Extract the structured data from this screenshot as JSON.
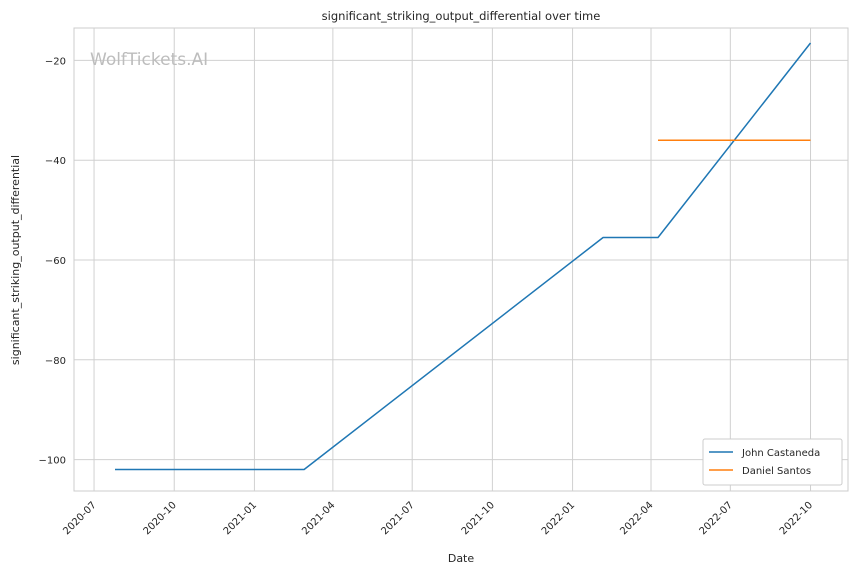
{
  "watermark": "WolfTickets.AI",
  "chart_data": {
    "type": "line",
    "title": "significant_striking_output_differential over time",
    "xlabel": "Date",
    "ylabel": "significant_striking_output_differential",
    "x_ticks": [
      "2020-07",
      "2020-10",
      "2021-01",
      "2021-04",
      "2021-07",
      "2021-10",
      "2022-01",
      "2022-04",
      "2022-07",
      "2022-10"
    ],
    "y_ticks": [
      -20,
      -40,
      -60,
      -80,
      -100
    ],
    "xlim": [
      "2020-06-08",
      "2022-11-13"
    ],
    "ylim": [
      -106.3,
      -13.5
    ],
    "grid": true,
    "legend_position": "lower-right",
    "series": [
      {
        "name": "John Castaneda",
        "color": "#1f77b4",
        "points": [
          {
            "x": "2020-07-25",
            "y": -102.0
          },
          {
            "x": "2021-02-27",
            "y": -102.0
          },
          {
            "x": "2022-02-05",
            "y": -55.5
          },
          {
            "x": "2022-04-09",
            "y": -55.5
          },
          {
            "x": "2022-10-01",
            "y": -16.5
          }
        ]
      },
      {
        "name": "Daniel Santos",
        "color": "#ff7f0e",
        "points": [
          {
            "x": "2022-04-09",
            "y": -36.0
          },
          {
            "x": "2022-10-01",
            "y": -36.0
          }
        ]
      }
    ]
  }
}
